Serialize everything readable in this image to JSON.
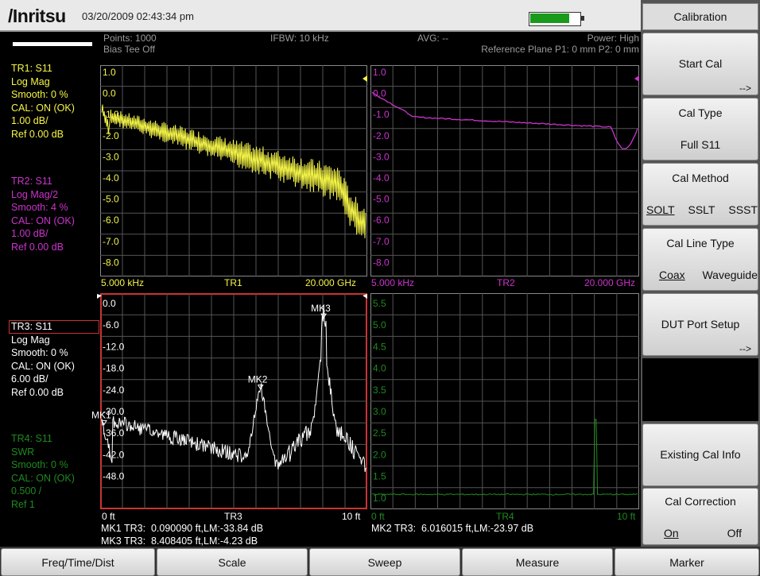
{
  "header": {
    "logo": "/Inritsu",
    "datetime": "03/20/2009 02:43:34 pm",
    "battery_level": 0.82
  },
  "status": {
    "points": "Points: 1000",
    "bias": "Bias Tee Off",
    "ifbw": "IFBW: 10 kHz",
    "avg": "AVG: --",
    "power": "Power: High",
    "ref_plane": "Reference Plane P1: 0 mm P2: 0 mm"
  },
  "traces": {
    "tr1": {
      "lines": [
        "TR1: S11",
        "Log Mag",
        "Smooth: 0 %",
        "CAL: ON (OK)",
        "1.00 dB/",
        "Ref 0.00 dB"
      ],
      "color": "#f5f547"
    },
    "tr2": {
      "lines": [
        "TR2: S11",
        "Log Mag/2",
        "Smooth: 4 %",
        "CAL: ON (OK)",
        "1.00 dB/",
        "Ref 0.00 dB"
      ],
      "color": "#cc33cc"
    },
    "tr3": {
      "lines": [
        "TR3: S11",
        "Log Mag",
        "Smooth: 0 %",
        "CAL: ON (OK)",
        "6.00 dB/",
        "Ref 0.00 dB"
      ],
      "color": "#ffffff"
    },
    "tr4": {
      "lines": [
        "TR4: S11",
        "SWR",
        "Smooth: 0 %",
        "CAL: ON (OK)",
        "0.500 /",
        "Ref 1"
      ],
      "color": "#1e8a1e"
    }
  },
  "plot1": {
    "y_labels": [
      "1.0",
      "0.0",
      "-1.0",
      "-2.0",
      "-3.0",
      "-4.0",
      "-5.0",
      "-6.0",
      "-7.0",
      "-8.0"
    ],
    "x_start": "5.000 kHz",
    "x_end": "20.000 GHz",
    "name": "TR1"
  },
  "plot2": {
    "y_labels": [
      "1.0",
      "0.0",
      "-1.0",
      "-2.0",
      "-3.0",
      "-4.0",
      "-5.0",
      "-6.0",
      "-7.0",
      "-8.0"
    ],
    "x_start": "5.000 kHz",
    "x_end": "20.000 GHz",
    "name": "TR2"
  },
  "plot3": {
    "y_labels": [
      "0.0",
      "-6.0",
      "-12.0",
      "-18.0",
      "-24.0",
      "-30.0",
      "-36.0",
      "-42.0",
      "-48.0"
    ],
    "x_start": "0 ft",
    "x_end": "10 ft",
    "name": "TR3",
    "markers": [
      {
        "label": "MK1",
        "x_ft": 0.0901,
        "y_db": -33.84
      },
      {
        "label": "MK2",
        "x_ft": 6.016,
        "y_db": -23.97
      },
      {
        "label": "MK3",
        "x_ft": 8.408,
        "y_db": -4.23
      }
    ]
  },
  "plot4": {
    "y_labels": [
      "5.5",
      "5.0",
      "4.5",
      "4.0",
      "3.5",
      "3.0",
      "2.5",
      "2.0",
      "1.5",
      "1.0"
    ],
    "x_start": "0 ft",
    "x_end": "10 ft",
    "name": "TR4"
  },
  "marker_readouts": {
    "mk1": "MK1 TR3:  0.090090 ft,LM:-33.84 dB",
    "mk3": "MK3 TR3:  8.408405 ft,LM:-4.23 dB",
    "mk2": "MK2 TR3:  6.016015 ft,LM:-23.97 dB"
  },
  "softkeys": {
    "title": "Calibration",
    "start_cal": "Start Cal",
    "start_cal_arrow": "-->",
    "cal_type": "Cal Type",
    "cal_type_value": "Full S11",
    "cal_method": "Cal Method",
    "cal_method_opts": [
      "SOLT",
      "SSLT",
      "SSST"
    ],
    "cal_line_type": "Cal Line Type",
    "cal_line_opts": [
      "Coax",
      "Waveguide"
    ],
    "dut_port_setup": "DUT Port Setup",
    "dut_arrow": "-->",
    "existing_cal_info": "Existing Cal Info",
    "cal_correction": "Cal Correction",
    "cal_correction_opts": [
      "On",
      "Off"
    ]
  },
  "bottom_menu": [
    "Freq/Time/Dist",
    "Scale",
    "Sweep",
    "Measure",
    "Marker"
  ]
}
